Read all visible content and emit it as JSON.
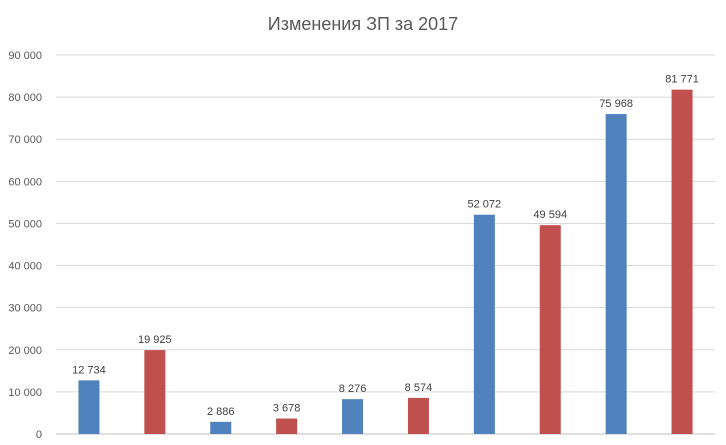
{
  "chart_data": {
    "type": "bar",
    "title": "Изменения ЗП за 2017",
    "xlabel": "",
    "ylabel": "",
    "ylim": [
      0,
      90000
    ],
    "yticks": [
      0,
      10000,
      20000,
      30000,
      40000,
      50000,
      60000,
      70000,
      80000,
      90000
    ],
    "ytick_labels": [
      "0",
      "10 000",
      "20 000",
      "30 000",
      "40 000",
      "50 000",
      "60 000",
      "70 000",
      "80 000",
      "90 000"
    ],
    "grid": true,
    "legend": "none",
    "values": [
      12734,
      19925,
      2886,
      3678,
      8276,
      8574,
      52072,
      49594,
      75968,
      81771
    ],
    "value_labels": [
      "12 734",
      "19 925",
      "2 886",
      "3 678",
      "8 276",
      "8 574",
      "52 072",
      "49 594",
      "75 968",
      "81 771"
    ],
    "colors": [
      "#4f81bd",
      "#c0504d",
      "#4f81bd",
      "#c0504d",
      "#4f81bd",
      "#c0504d",
      "#4f81bd",
      "#c0504d",
      "#4f81bd",
      "#c0504d"
    ]
  }
}
